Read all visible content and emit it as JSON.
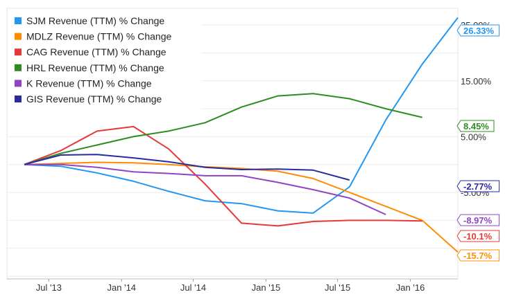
{
  "chart_data": {
    "type": "line",
    "title": "",
    "xlabel": "",
    "ylabel": "",
    "x_tick_labels": [
      "Jul '13",
      "Jan '14",
      "Jul '14",
      "Jan '15",
      "Jul '15",
      "Jan '16"
    ],
    "y_tick_labels": [
      "25.00%",
      "15.00%",
      "5.00%",
      "-5.00%"
    ],
    "y_ticks": [
      25,
      15,
      5,
      -5
    ],
    "ylim": [
      -20.5,
      28
    ],
    "grid": "horizontal",
    "legend_position": "top-left",
    "series": [
      {
        "name": "SJM Revenue (TTM) % Change",
        "color": "#2196f3",
        "end_label": "26.33%",
        "end_value": 26.33,
        "points": [
          [
            "2013-04-30",
            0
          ],
          [
            "2013-07-31",
            -0.3
          ],
          [
            "2013-10-31",
            -1.5
          ],
          [
            "2014-01-31",
            -3
          ],
          [
            "2014-04-30",
            -4.8
          ],
          [
            "2014-07-31",
            -6.5
          ],
          [
            "2014-10-31",
            -7
          ],
          [
            "2015-01-31",
            -8.3
          ],
          [
            "2015-04-30",
            -8.7
          ],
          [
            "2015-07-31",
            -4
          ],
          [
            "2015-10-31",
            8
          ],
          [
            "2016-01-31",
            18
          ],
          [
            "2016-04-30",
            26.33
          ]
        ]
      },
      {
        "name": "MDLZ Revenue (TTM) % Change",
        "color": "#ff8c00",
        "end_label": "-15.7%",
        "end_value": -15.7,
        "points": [
          [
            "2013-04-30",
            0
          ],
          [
            "2013-07-31",
            0.2
          ],
          [
            "2013-10-31",
            0.4
          ],
          [
            "2014-01-31",
            0.3
          ],
          [
            "2014-04-30",
            0
          ],
          [
            "2014-07-31",
            -0.4
          ],
          [
            "2014-10-31",
            -0.7
          ],
          [
            "2015-01-31",
            -1.2
          ],
          [
            "2015-04-30",
            -2.5
          ],
          [
            "2015-07-31",
            -5
          ],
          [
            "2015-10-31",
            -7.5
          ],
          [
            "2016-01-31",
            -10
          ],
          [
            "2016-04-30",
            -15.7
          ]
        ]
      },
      {
        "name": "CAG Revenue (TTM) % Change",
        "color": "#e53935",
        "end_label": "-10.1%",
        "end_value": -10.1,
        "points": [
          [
            "2013-04-30",
            0
          ],
          [
            "2013-07-31",
            2.5
          ],
          [
            "2013-10-31",
            6
          ],
          [
            "2014-01-31",
            6.8
          ],
          [
            "2014-04-30",
            2.8
          ],
          [
            "2014-07-31",
            -3.5
          ],
          [
            "2014-10-31",
            -10.5
          ],
          [
            "2015-01-31",
            -11
          ],
          [
            "2015-04-30",
            -10.2
          ],
          [
            "2015-07-31",
            -10
          ],
          [
            "2015-10-31",
            -10
          ],
          [
            "2016-01-31",
            -10.1
          ]
        ]
      },
      {
        "name": "HRL Revenue (TTM) % Change",
        "color": "#2e8b22",
        "end_label": "8.45%",
        "end_value": 8.45,
        "points": [
          [
            "2013-04-30",
            0
          ],
          [
            "2013-07-31",
            2
          ],
          [
            "2013-10-31",
            3.5
          ],
          [
            "2014-01-31",
            5
          ],
          [
            "2014-04-30",
            6
          ],
          [
            "2014-07-31",
            7.5
          ],
          [
            "2014-10-31",
            10.3
          ],
          [
            "2015-01-31",
            12.3
          ],
          [
            "2015-04-30",
            12.7
          ],
          [
            "2015-07-31",
            11.8
          ],
          [
            "2015-10-31",
            10
          ],
          [
            "2016-01-31",
            8.45
          ]
        ]
      },
      {
        "name": "K Revenue (TTM) % Change",
        "color": "#8e44c4",
        "end_label": "-8.97%",
        "end_value": -8.97,
        "points": [
          [
            "2013-04-30",
            0
          ],
          [
            "2013-07-31",
            0
          ],
          [
            "2013-10-31",
            -0.5
          ],
          [
            "2014-01-31",
            -1.3
          ],
          [
            "2014-04-30",
            -1.6
          ],
          [
            "2014-07-31",
            -2
          ],
          [
            "2014-10-31",
            -2
          ],
          [
            "2015-01-31",
            -3.2
          ],
          [
            "2015-04-30",
            -4.5
          ],
          [
            "2015-07-31",
            -6
          ],
          [
            "2015-10-31",
            -8.97
          ]
        ]
      },
      {
        "name": "GIS Revenue (TTM) % Change",
        "color": "#2a2aa0",
        "end_label": "-2.77%",
        "end_value": -2.77,
        "points": [
          [
            "2013-04-30",
            0
          ],
          [
            "2013-07-31",
            1.7
          ],
          [
            "2013-10-31",
            1.8
          ],
          [
            "2014-01-31",
            1.2
          ],
          [
            "2014-04-30",
            0.5
          ],
          [
            "2014-07-31",
            -0.5
          ],
          [
            "2014-10-31",
            -0.9
          ],
          [
            "2015-01-31",
            -0.8
          ],
          [
            "2015-04-30",
            -1
          ],
          [
            "2015-07-31",
            -2.77
          ]
        ]
      }
    ]
  }
}
